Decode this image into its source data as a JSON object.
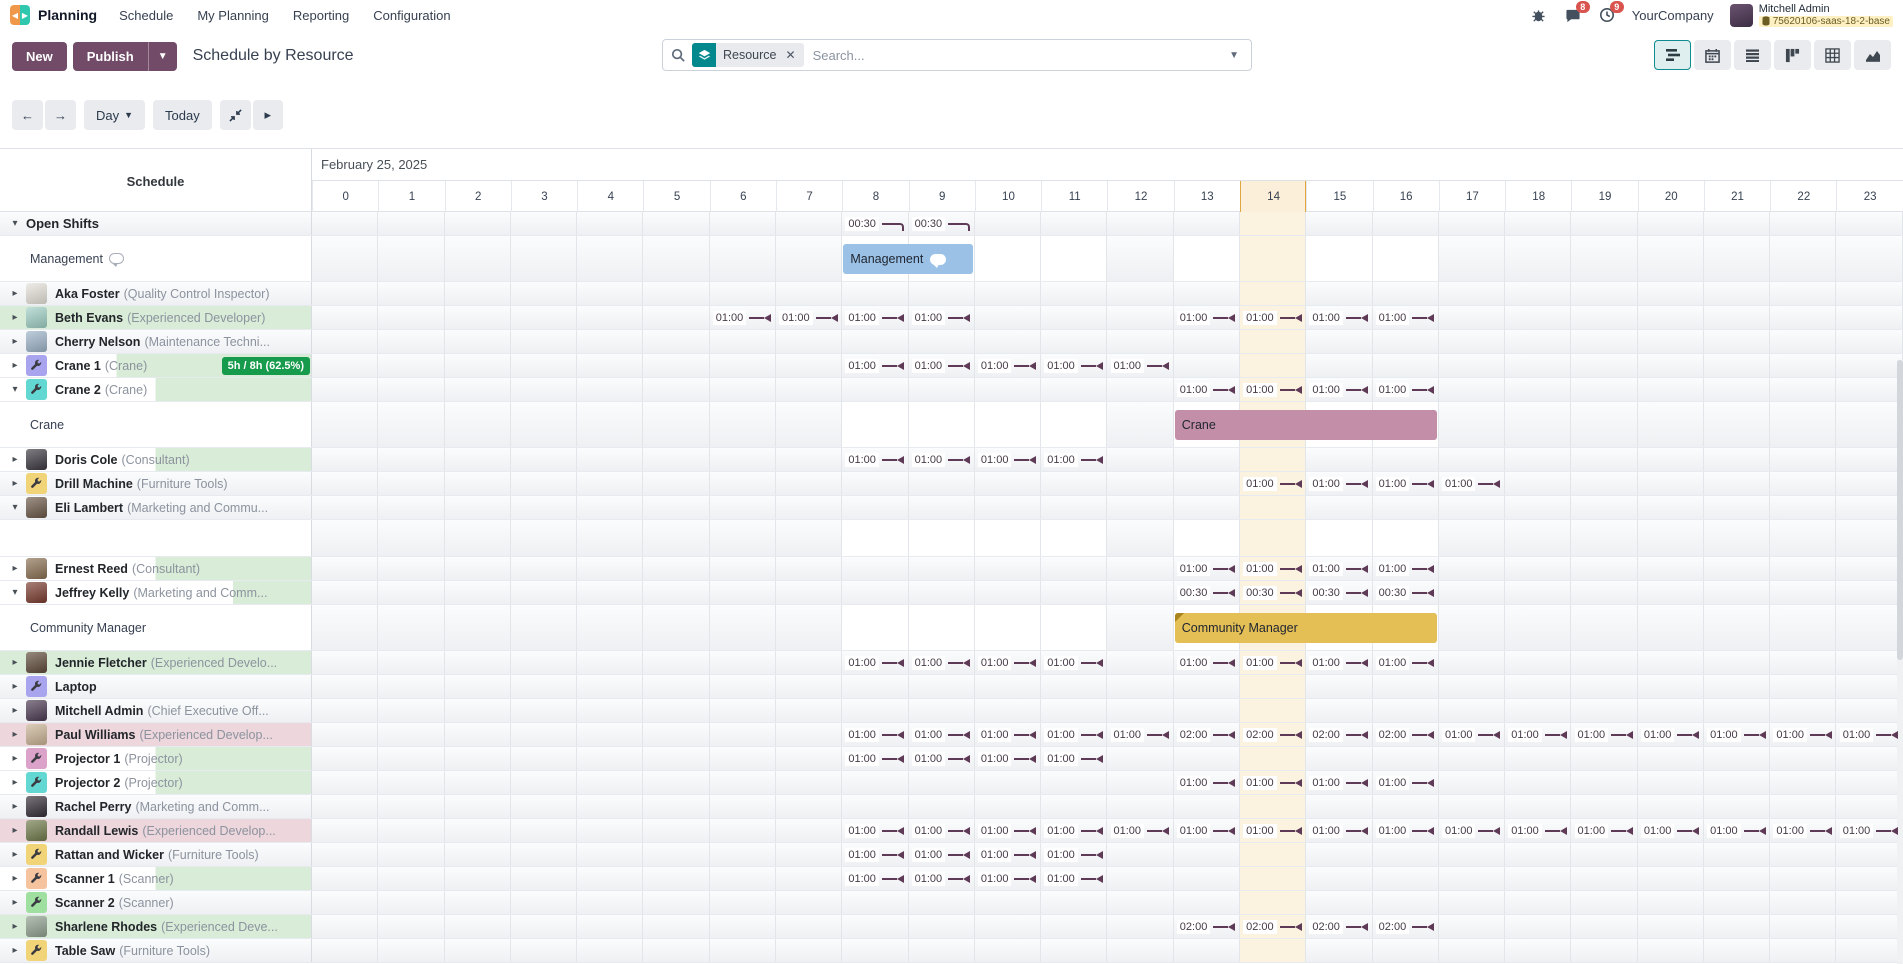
{
  "navbar": {
    "app": "Planning",
    "menus": [
      "Schedule",
      "My Planning",
      "Reporting",
      "Configuration"
    ],
    "chat_badge": "8",
    "activity_badge": "9",
    "company": "YourCompany",
    "user": "Mitchell Admin",
    "database": "75620106-saas-18-2-base"
  },
  "toolbar": {
    "new_label": "New",
    "publish_label": "Publish",
    "title": "Schedule by Resource",
    "facet_label": "Resource",
    "search_placeholder": "Search..."
  },
  "nav": {
    "range_label": "Day",
    "today_label": "Today"
  },
  "colors": {
    "accent": "#714B67",
    "marker": "#5e3a56",
    "badge_green": "#169a4b",
    "tint_green": "#d9ecd8",
    "tint_pink": "#edd6dc",
    "bar_management": "#9BC2E6",
    "bar_crane": "#C38FA8",
    "bar_community": "#E3BF56",
    "now_highlight": "#fbf2e0"
  },
  "gantt": {
    "panel_title": "Schedule",
    "date": "February 25, 2025",
    "hours": [
      "0",
      "1",
      "2",
      "3",
      "4",
      "5",
      "6",
      "7",
      "8",
      "9",
      "10",
      "11",
      "12",
      "13",
      "14",
      "15",
      "16",
      "17",
      "18",
      "19",
      "20",
      "21",
      "22",
      "23"
    ],
    "now_hour": 14,
    "work_hours": [
      8,
      9,
      10,
      11,
      13,
      14,
      15,
      16
    ],
    "rows": [
      {
        "kind": "group",
        "label": "Open Shifts",
        "caret": "down",
        "markers": [
          {
            "text": "00:30",
            "hours": [
              8,
              9
            ],
            "style": "hook"
          }
        ]
      },
      {
        "kind": "sub",
        "label": "Management",
        "bubble": true,
        "bar": {
          "label": "Management",
          "start": 8,
          "end": 10,
          "color": "#9BC2E6",
          "chat": true
        }
      },
      {
        "kind": "res",
        "name": "Aka Foster",
        "role": "(Quality Control Inspector)",
        "caret": "right",
        "icon": "avatar",
        "icon_bg": "#e6e2da"
      },
      {
        "kind": "res",
        "name": "Beth Evans",
        "role": "(Experienced Developer)",
        "caret": "right",
        "icon": "avatar",
        "icon_bg": "#9fcfc4",
        "tint": "green",
        "fill": 1,
        "markers": [
          {
            "text": "01:00",
            "hours": [
              6,
              7,
              8,
              9,
              13,
              14,
              15,
              16
            ]
          }
        ]
      },
      {
        "kind": "res",
        "name": "Cherry Nelson",
        "role": "(Maintenance Techni...",
        "caret": "right",
        "icon": "avatar",
        "icon_bg": "#9db3c8"
      },
      {
        "kind": "res",
        "name": "Crane 1",
        "role": "(Crane)",
        "caret": "right",
        "icon": "wrench",
        "icon_bg": "#a9a4ee",
        "tint": "green",
        "fill": 0.625,
        "badge": "5h / 8h (62.5%)",
        "markers": [
          {
            "text": "01:00",
            "hours": [
              8,
              9,
              10,
              11,
              12
            ]
          }
        ]
      },
      {
        "kind": "res",
        "name": "Crane 2",
        "role": "(Crane)",
        "caret": "down",
        "icon": "wrench",
        "icon_bg": "#63d8d2",
        "tint": "green",
        "fill": 0.5,
        "markers": [
          {
            "text": "01:00",
            "hours": [
              13,
              14,
              15,
              16
            ]
          }
        ]
      },
      {
        "kind": "sub",
        "label": "Crane",
        "bar": {
          "label": "Crane",
          "start": 13,
          "end": 17,
          "color": "#C38FA8"
        }
      },
      {
        "kind": "res",
        "name": "Doris Cole",
        "role": "(Consultant)",
        "caret": "right",
        "icon": "avatar",
        "icon_bg": "#3c3740",
        "tint": "green",
        "fill": 0.5,
        "markers": [
          {
            "text": "01:00",
            "hours": [
              8,
              9,
              10,
              11
            ]
          }
        ]
      },
      {
        "kind": "res",
        "name": "Drill Machine",
        "role": "(Furniture Tools)",
        "caret": "right",
        "icon": "wrench",
        "icon_bg": "#f2d478",
        "markers": [
          {
            "text": "01:00",
            "hours": [
              14,
              15,
              16,
              17
            ]
          }
        ]
      },
      {
        "kind": "res",
        "name": "Eli Lambert",
        "role": "(Marketing and Commu...",
        "caret": "down",
        "icon": "avatar",
        "icon_bg": "#6b5747"
      },
      {
        "kind": "sub",
        "label": ""
      },
      {
        "kind": "res",
        "name": "Ernest Reed",
        "role": "(Consultant)",
        "caret": "right",
        "icon": "avatar",
        "icon_bg": "#8a6f52",
        "tint": "green",
        "fill": 0.5,
        "markers": [
          {
            "text": "01:00",
            "hours": [
              13,
              14,
              15,
              16
            ]
          }
        ]
      },
      {
        "kind": "res",
        "name": "Jeffrey Kelly",
        "role": "(Marketing and Comm...",
        "caret": "down",
        "icon": "avatar",
        "icon_bg": "#7a3b2e",
        "tint": "green",
        "fill": 0.25,
        "markers": [
          {
            "text": "00:30",
            "hours": [
              13,
              14,
              15,
              16
            ]
          }
        ]
      },
      {
        "kind": "sub",
        "label": "Community Manager",
        "bar": {
          "label": "Community Manager",
          "start": 13,
          "end": 17,
          "color": "#E3BF56",
          "fold": true
        }
      },
      {
        "kind": "res",
        "name": "Jennie Fletcher",
        "role": "(Experienced Develo...",
        "caret": "right",
        "icon": "avatar",
        "icon_bg": "#5f4a3a",
        "tint": "green",
        "fill": 1,
        "markers": [
          {
            "text": "01:00",
            "hours": [
              8,
              9,
              10,
              11,
              13,
              14,
              15,
              16
            ]
          }
        ]
      },
      {
        "kind": "res",
        "name": "Laptop",
        "role": "",
        "caret": "right",
        "icon": "wrench",
        "icon_bg": "#a9a4ee"
      },
      {
        "kind": "res",
        "name": "Mitchell Admin",
        "role": "(Chief Executive Off...",
        "caret": "right",
        "icon": "avatar",
        "icon_bg": "#4b3a52"
      },
      {
        "kind": "res",
        "name": "Paul Williams",
        "role": "(Experienced Develop...",
        "caret": "right",
        "icon": "avatar",
        "icon_bg": "#c9b294",
        "tint": "pink",
        "fill": 1,
        "markers": [
          {
            "text": "01:00",
            "hours": [
              8,
              9,
              10,
              11,
              12
            ]
          },
          {
            "text": "02:00",
            "hours": [
              13,
              14,
              15,
              16
            ]
          },
          {
            "text": "01:00",
            "hours": [
              17,
              18,
              19,
              20,
              21,
              22,
              23
            ]
          }
        ]
      },
      {
        "kind": "res",
        "name": "Projector 1",
        "role": "(Projector)",
        "caret": "right",
        "icon": "wrench",
        "icon_bg": "#dba3c9",
        "tint": "green",
        "fill": 0.5,
        "markers": [
          {
            "text": "01:00",
            "hours": [
              8,
              9,
              10,
              11
            ]
          }
        ]
      },
      {
        "kind": "res",
        "name": "Projector 2",
        "role": "(Projector)",
        "caret": "right",
        "icon": "wrench",
        "icon_bg": "#63d8d2",
        "tint": "green",
        "fill": 0.5,
        "markers": [
          {
            "text": "01:00",
            "hours": [
              13,
              14,
              15,
              16
            ]
          }
        ]
      },
      {
        "kind": "res",
        "name": "Rachel Perry",
        "role": "(Marketing and Comm...",
        "caret": "right",
        "icon": "avatar",
        "icon_bg": "#332d36"
      },
      {
        "kind": "res",
        "name": "Randall Lewis",
        "role": "(Experienced Develop...",
        "caret": "right",
        "icon": "avatar",
        "icon_bg": "#6f7a4a",
        "tint": "pink",
        "fill": 1,
        "markers": [
          {
            "text": "01:00",
            "hours": [
              8,
              9,
              10,
              11,
              12,
              13,
              14,
              15,
              16,
              17,
              18,
              19,
              20,
              21,
              22,
              23
            ]
          }
        ]
      },
      {
        "kind": "res",
        "name": "Rattan and Wicker",
        "role": "(Furniture Tools)",
        "caret": "right",
        "icon": "wrench",
        "icon_bg": "#f2d478",
        "markers": [
          {
            "text": "01:00",
            "hours": [
              8,
              9,
              10,
              11
            ]
          }
        ]
      },
      {
        "kind": "res",
        "name": "Scanner 1",
        "role": "(Scanner)",
        "caret": "right",
        "icon": "wrench",
        "icon_bg": "#f5c49e",
        "tint": "green",
        "fill": 0.5,
        "markers": [
          {
            "text": "01:00",
            "hours": [
              8,
              9,
              10,
              11
            ]
          }
        ]
      },
      {
        "kind": "res",
        "name": "Scanner 2",
        "role": "(Scanner)",
        "caret": "right",
        "icon": "wrench",
        "icon_bg": "#9fdf9f"
      },
      {
        "kind": "res",
        "name": "Sharlene Rhodes",
        "role": "(Experienced Deve...",
        "caret": "right",
        "icon": "avatar",
        "icon_bg": "#8fa08f",
        "tint": "green",
        "fill": 1,
        "markers": [
          {
            "text": "02:00",
            "hours": [
              13,
              14,
              15,
              16
            ]
          }
        ]
      },
      {
        "kind": "res",
        "name": "Table Saw",
        "role": "(Furniture Tools)",
        "caret": "right",
        "icon": "wrench",
        "icon_bg": "#f2d478"
      }
    ]
  }
}
